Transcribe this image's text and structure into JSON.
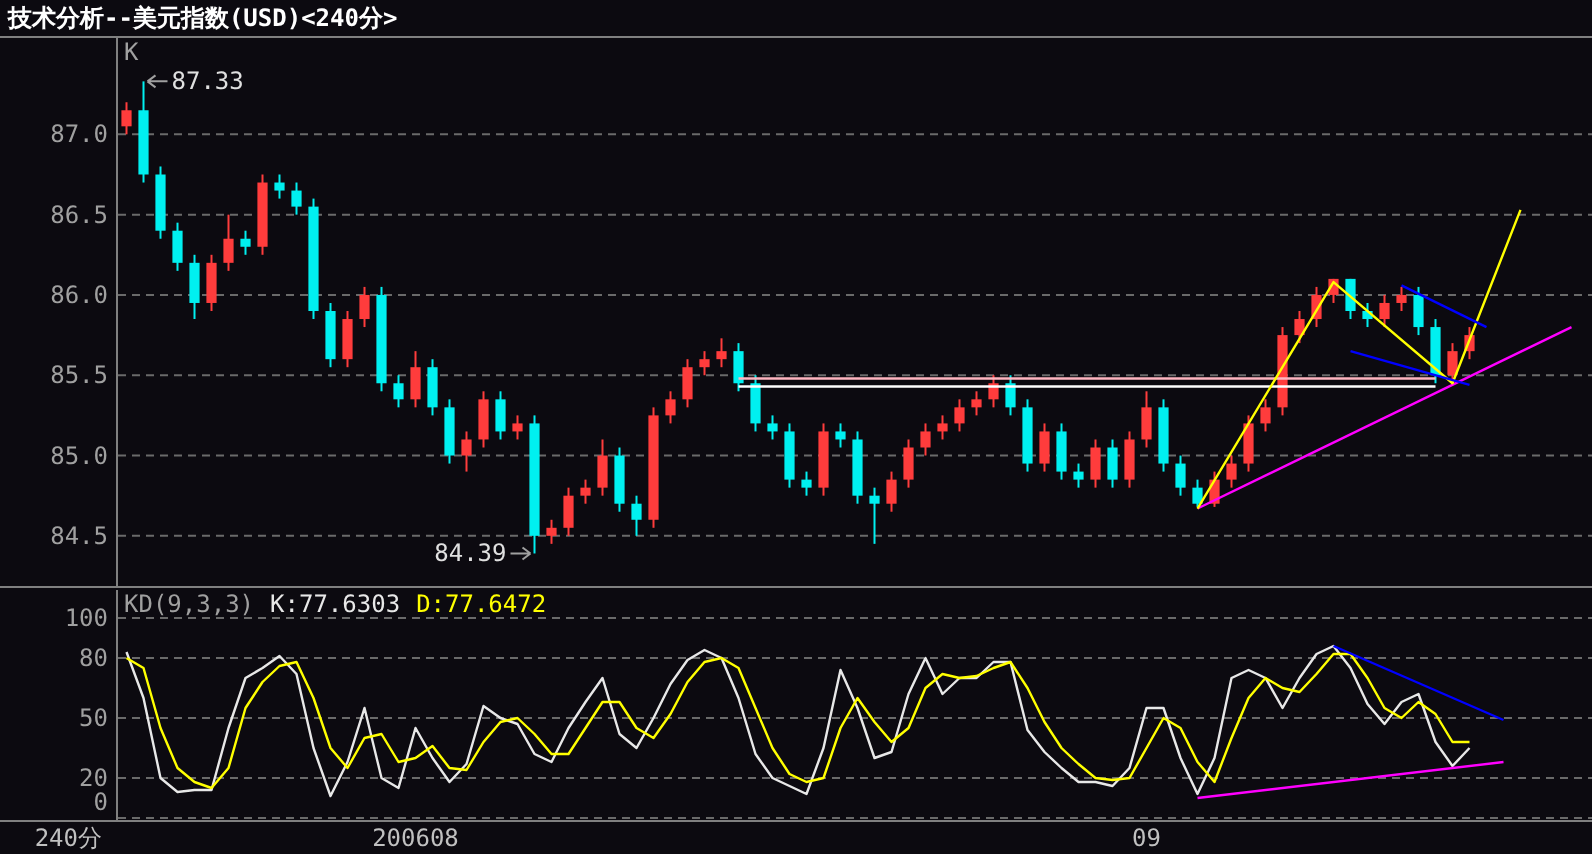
{
  "chart_data": [
    {
      "type": "candlestick",
      "title": "技术分析--美元指数(USD)<240分>",
      "categories": [
        null,
        null,
        null,
        null,
        null,
        null,
        null,
        null,
        null,
        null,
        null,
        null,
        null,
        null,
        null,
        null,
        null,
        null,
        null,
        null,
        null,
        null,
        null,
        null,
        null,
        null,
        null,
        null,
        null,
        null,
        null,
        null,
        null,
        null,
        null,
        null,
        null,
        null,
        null,
        null,
        null,
        null,
        null,
        null,
        null,
        null,
        null,
        null,
        null,
        null,
        null,
        null,
        null,
        null,
        null,
        null,
        null,
        null,
        null,
        null,
        null,
        null,
        null,
        null,
        null,
        null,
        null,
        null,
        null,
        null,
        null,
        null,
        null,
        null,
        null,
        null,
        null,
        null,
        null,
        null,
        null,
        null,
        null,
        null,
        null,
        null
      ],
      "ohlc": [
        [
          87.05,
          87.2,
          87.0,
          87.15
        ],
        [
          87.15,
          87.33,
          86.7,
          86.75
        ],
        [
          86.75,
          86.8,
          86.35,
          86.4
        ],
        [
          86.4,
          86.45,
          86.15,
          86.2
        ],
        [
          86.2,
          86.25,
          85.85,
          85.95
        ],
        [
          85.95,
          86.25,
          85.9,
          86.2
        ],
        [
          86.2,
          86.5,
          86.15,
          86.35
        ],
        [
          86.35,
          86.4,
          86.25,
          86.3
        ],
        [
          86.3,
          86.75,
          86.25,
          86.7
        ],
        [
          86.7,
          86.75,
          86.6,
          86.65
        ],
        [
          86.65,
          86.7,
          86.5,
          86.55
        ],
        [
          86.55,
          86.6,
          85.85,
          85.9
        ],
        [
          85.9,
          85.95,
          85.55,
          85.6
        ],
        [
          85.6,
          85.9,
          85.55,
          85.85
        ],
        [
          85.85,
          86.05,
          85.8,
          86.0
        ],
        [
          86.0,
          86.05,
          85.4,
          85.45
        ],
        [
          85.45,
          85.5,
          85.3,
          85.35
        ],
        [
          85.35,
          85.65,
          85.3,
          85.55
        ],
        [
          85.55,
          85.6,
          85.25,
          85.3
        ],
        [
          85.3,
          85.35,
          84.95,
          85.0
        ],
        [
          85.0,
          85.15,
          84.9,
          85.1
        ],
        [
          85.1,
          85.4,
          85.05,
          85.35
        ],
        [
          85.35,
          85.4,
          85.1,
          85.15
        ],
        [
          85.15,
          85.25,
          85.1,
          85.2
        ],
        [
          85.2,
          85.25,
          84.39,
          84.5
        ],
        [
          84.5,
          84.6,
          84.45,
          84.55
        ],
        [
          84.55,
          84.8,
          84.5,
          84.75
        ],
        [
          84.75,
          84.85,
          84.7,
          84.8
        ],
        [
          84.8,
          85.1,
          84.75,
          85.0
        ],
        [
          85.0,
          85.05,
          84.65,
          84.7
        ],
        [
          84.7,
          84.75,
          84.5,
          84.6
        ],
        [
          84.6,
          85.3,
          84.55,
          85.25
        ],
        [
          85.25,
          85.4,
          85.2,
          85.35
        ],
        [
          85.35,
          85.6,
          85.3,
          85.55
        ],
        [
          85.55,
          85.65,
          85.5,
          85.6
        ],
        [
          85.6,
          85.73,
          85.55,
          85.65
        ],
        [
          85.65,
          85.7,
          85.4,
          85.45
        ],
        [
          85.45,
          85.5,
          85.15,
          85.2
        ],
        [
          85.2,
          85.25,
          85.1,
          85.15
        ],
        [
          85.15,
          85.2,
          84.8,
          84.85
        ],
        [
          84.85,
          84.9,
          84.75,
          84.8
        ],
        [
          84.8,
          85.2,
          84.75,
          85.15
        ],
        [
          85.15,
          85.2,
          85.05,
          85.1
        ],
        [
          85.1,
          85.15,
          84.7,
          84.75
        ],
        [
          84.75,
          84.8,
          84.45,
          84.7
        ],
        [
          84.7,
          84.9,
          84.65,
          84.85
        ],
        [
          84.85,
          85.1,
          84.8,
          85.05
        ],
        [
          85.05,
          85.2,
          85.0,
          85.15
        ],
        [
          85.15,
          85.25,
          85.1,
          85.2
        ],
        [
          85.2,
          85.35,
          85.15,
          85.3
        ],
        [
          85.3,
          85.4,
          85.25,
          85.35
        ],
        [
          85.35,
          85.5,
          85.3,
          85.45
        ],
        [
          85.45,
          85.5,
          85.25,
          85.3
        ],
        [
          85.3,
          85.35,
          84.9,
          84.95
        ],
        [
          84.95,
          85.2,
          84.9,
          85.15
        ],
        [
          85.15,
          85.2,
          84.85,
          84.9
        ],
        [
          84.9,
          84.95,
          84.8,
          84.85
        ],
        [
          84.85,
          85.1,
          84.8,
          85.05
        ],
        [
          85.05,
          85.1,
          84.8,
          84.85
        ],
        [
          84.85,
          85.15,
          84.8,
          85.1
        ],
        [
          85.1,
          85.4,
          85.05,
          85.3
        ],
        [
          85.3,
          85.35,
          84.9,
          84.95
        ],
        [
          84.95,
          85.0,
          84.75,
          84.8
        ],
        [
          84.8,
          84.85,
          84.68,
          84.7
        ],
        [
          84.7,
          84.9,
          84.68,
          84.85
        ],
        [
          84.85,
          85.0,
          84.8,
          84.95
        ],
        [
          84.95,
          85.25,
          84.9,
          85.2
        ],
        [
          85.2,
          85.35,
          85.15,
          85.3
        ],
        [
          85.3,
          85.8,
          85.25,
          85.75
        ],
        [
          85.75,
          85.9,
          85.7,
          85.85
        ],
        [
          85.85,
          86.05,
          85.8,
          86.0
        ],
        [
          86.0,
          86.1,
          85.95,
          86.1
        ],
        [
          86.1,
          86.1,
          85.85,
          85.9
        ],
        [
          85.9,
          85.95,
          85.8,
          85.85
        ],
        [
          85.85,
          86.0,
          85.8,
          85.95
        ],
        [
          85.95,
          86.05,
          85.9,
          86.0
        ],
        [
          86.0,
          86.05,
          85.75,
          85.8
        ],
        [
          85.8,
          85.85,
          85.45,
          85.5
        ],
        [
          85.5,
          85.7,
          85.45,
          85.65
        ],
        [
          85.65,
          85.8,
          85.6,
          85.75
        ],
        null,
        null,
        null,
        null,
        null,
        null
      ],
      "ylim": [
        84.2,
        87.6
      ],
      "yticks": [
        84.5,
        {
          "value": 85,
          "label": "85.0"
        },
        85.5,
        {
          "value": 86,
          "label": "86.0"
        },
        86.5,
        {
          "value": 87,
          "label": "87.0"
        }
      ],
      "grid": "y",
      "tick_labels": "y",
      "annotations": [
        "K",
        "87.33",
        "84.39"
      ],
      "series": [
        {
          "type": "line",
          "color": "#ffb6c1",
          "values": [
            null,
            null,
            null,
            null,
            null,
            null,
            null,
            null,
            null,
            null,
            null,
            null,
            null,
            null,
            null,
            null,
            null,
            null,
            null,
            null,
            null,
            null,
            null,
            null,
            null,
            null,
            null,
            null,
            null,
            null,
            null,
            null,
            null,
            null,
            null,
            null,
            85.48,
            null,
            null,
            null,
            null,
            null,
            null,
            null,
            null,
            null,
            null,
            null,
            null,
            null,
            null,
            null,
            null,
            null,
            null,
            null,
            null,
            null,
            null,
            null,
            null,
            null,
            null,
            null,
            null,
            null,
            null,
            null,
            null,
            null,
            null,
            null,
            null,
            null,
            null,
            null,
            null,
            85.48,
            null,
            null,
            null,
            null,
            null,
            null,
            null,
            null
          ]
        },
        {
          "type": "line",
          "color": "#ffffff",
          "values": [
            null,
            null,
            null,
            null,
            null,
            null,
            null,
            null,
            null,
            null,
            null,
            null,
            null,
            null,
            null,
            null,
            null,
            null,
            null,
            null,
            null,
            null,
            null,
            null,
            null,
            null,
            null,
            null,
            null,
            null,
            null,
            null,
            null,
            null,
            null,
            null,
            85.43,
            null,
            null,
            null,
            null,
            null,
            null,
            null,
            null,
            null,
            null,
            null,
            null,
            null,
            null,
            null,
            null,
            null,
            null,
            null,
            null,
            null,
            null,
            null,
            null,
            null,
            null,
            null,
            null,
            null,
            null,
            null,
            null,
            null,
            null,
            null,
            null,
            null,
            null,
            null,
            null,
            85.43,
            null,
            null,
            null,
            null,
            null,
            null,
            null,
            null
          ]
        },
        {
          "type": "line",
          "color": "#ff00ff",
          "values": [
            null,
            null,
            null,
            null,
            null,
            null,
            null,
            null,
            null,
            null,
            null,
            null,
            null,
            null,
            null,
            null,
            null,
            null,
            null,
            null,
            null,
            null,
            null,
            null,
            null,
            null,
            null,
            null,
            null,
            null,
            null,
            null,
            null,
            null,
            null,
            null,
            null,
            null,
            null,
            null,
            null,
            null,
            null,
            null,
            null,
            null,
            null,
            null,
            null,
            null,
            null,
            null,
            null,
            null,
            null,
            null,
            null,
            null,
            null,
            null,
            null,
            null,
            null,
            84.67,
            null,
            null,
            null,
            null,
            null,
            null,
            null,
            null,
            null,
            null,
            null,
            null,
            null,
            null,
            null,
            null,
            null,
            null,
            null,
            null,
            null,
            85.8
          ]
        },
        {
          "type": "line",
          "color": "#ffff00",
          "values": [
            null,
            null,
            null,
            null,
            null,
            null,
            null,
            null,
            null,
            null,
            null,
            null,
            null,
            null,
            null,
            null,
            null,
            null,
            null,
            null,
            null,
            null,
            null,
            null,
            null,
            null,
            null,
            null,
            null,
            null,
            null,
            null,
            null,
            null,
            null,
            null,
            null,
            null,
            null,
            null,
            null,
            null,
            null,
            null,
            null,
            null,
            null,
            null,
            null,
            null,
            null,
            null,
            null,
            null,
            null,
            null,
            null,
            null,
            null,
            null,
            null,
            null,
            null,
            84.67,
            null,
            null,
            null,
            null,
            null,
            null,
            null,
            86.08,
            null,
            null,
            null,
            null,
            null,
            null,
            85.45,
            null,
            null,
            null,
            86.53,
            null,
            null,
            null
          ]
        },
        {
          "type": "line",
          "color": "#0000ff",
          "values": [
            null,
            null,
            null,
            null,
            null,
            null,
            null,
            null,
            null,
            null,
            null,
            null,
            null,
            null,
            null,
            null,
            null,
            null,
            null,
            null,
            null,
            null,
            null,
            null,
            null,
            null,
            null,
            null,
            null,
            null,
            null,
            null,
            null,
            null,
            null,
            null,
            null,
            null,
            null,
            null,
            null,
            null,
            null,
            null,
            null,
            null,
            null,
            null,
            null,
            null,
            null,
            null,
            null,
            null,
            null,
            null,
            null,
            null,
            null,
            null,
            null,
            null,
            null,
            null,
            null,
            null,
            null,
            null,
            null,
            null,
            null,
            null,
            null,
            null,
            null,
            86.06,
            null,
            null,
            null,
            null,
            85.8,
            null,
            null,
            null,
            null,
            null
          ]
        },
        {
          "type": "line",
          "color": "#0000ff",
          "values": [
            null,
            null,
            null,
            null,
            null,
            null,
            null,
            null,
            null,
            null,
            null,
            null,
            null,
            null,
            null,
            null,
            null,
            null,
            null,
            null,
            null,
            null,
            null,
            null,
            null,
            null,
            null,
            null,
            null,
            null,
            null,
            null,
            null,
            null,
            null,
            null,
            null,
            null,
            null,
            null,
            null,
            null,
            null,
            null,
            null,
            null,
            null,
            null,
            null,
            null,
            null,
            null,
            null,
            null,
            null,
            null,
            null,
            null,
            null,
            null,
            null,
            null,
            null,
            null,
            null,
            null,
            null,
            null,
            null,
            null,
            null,
            null,
            85.65,
            null,
            null,
            null,
            null,
            null,
            null,
            85.44,
            null,
            null,
            null,
            null,
            null,
            null
          ]
        }
      ]
    },
    {
      "type": "line",
      "categories": [
        null,
        null,
        null,
        null,
        null,
        null,
        null,
        null,
        null,
        null,
        null,
        null,
        null,
        null,
        null,
        null,
        null,
        "200608",
        null,
        null,
        null,
        null,
        null,
        null,
        null,
        null,
        null,
        null,
        null,
        null,
        null,
        null,
        null,
        null,
        null,
        null,
        null,
        null,
        null,
        null,
        null,
        null,
        null,
        null,
        null,
        null,
        null,
        null,
        null,
        null,
        null,
        null,
        null,
        null,
        null,
        null,
        null,
        null,
        null,
        null,
        "09",
        null,
        null,
        null,
        null,
        null,
        null,
        null,
        null,
        null,
        null,
        null,
        null,
        null,
        null,
        null,
        null,
        null,
        null,
        null,
        null,
        null,
        null,
        null,
        null,
        null
      ],
      "ylim": [
        0,
        114
      ],
      "yticks": [
        0,
        20,
        50,
        80,
        100
      ],
      "grid": "y",
      "legend": "top left",
      "annotations": [
        "KD(9,3,3)",
        "240分"
      ],
      "series": [
        {
          "name": "K:77.6303",
          "color": "#e8e8e8",
          "values": [
            83,
            60,
            20,
            13,
            14,
            14,
            45,
            70,
            75,
            81,
            72,
            35,
            11,
            28,
            55,
            20,
            15,
            45,
            30,
            18,
            27,
            56,
            50,
            47,
            32,
            28,
            45,
            58,
            70,
            42,
            35,
            50,
            67,
            79,
            84,
            80,
            60,
            32,
            20,
            16,
            12,
            35,
            74,
            55,
            30,
            33,
            62,
            80,
            62,
            70,
            70,
            78,
            78,
            44,
            33,
            25,
            18,
            18,
            16,
            25,
            55,
            55,
            30,
            12,
            30,
            70,
            74,
            70,
            55,
            70,
            82,
            86,
            75,
            57,
            47,
            58,
            62,
            38,
            26,
            35,
            null,
            null,
            null,
            null,
            null,
            null
          ]
        },
        {
          "name": "D:77.6472",
          "color": "#ffff00",
          "values": [
            80,
            75,
            45,
            25,
            18,
            15,
            25,
            55,
            68,
            76,
            78,
            60,
            35,
            25,
            40,
            42,
            28,
            30,
            36,
            25,
            24,
            38,
            48,
            50,
            42,
            32,
            32,
            45,
            58,
            58,
            45,
            40,
            52,
            68,
            78,
            80,
            75,
            55,
            35,
            22,
            18,
            20,
            45,
            60,
            48,
            38,
            45,
            65,
            72,
            70,
            71,
            75,
            78,
            65,
            48,
            35,
            27,
            20,
            19,
            20,
            35,
            50,
            45,
            28,
            18,
            40,
            60,
            70,
            65,
            63,
            72,
            82,
            82,
            70,
            55,
            50,
            58,
            52,
            38,
            38,
            null,
            null,
            null,
            null,
            null,
            null
          ]
        },
        {
          "type": "line",
          "color": "#0000ff",
          "values": [
            null,
            null,
            null,
            null,
            null,
            null,
            null,
            null,
            null,
            null,
            null,
            null,
            null,
            null,
            null,
            null,
            null,
            null,
            null,
            null,
            null,
            null,
            null,
            null,
            null,
            null,
            null,
            null,
            null,
            null,
            null,
            null,
            null,
            null,
            null,
            null,
            null,
            null,
            null,
            null,
            null,
            null,
            null,
            null,
            null,
            null,
            null,
            null,
            null,
            null,
            null,
            null,
            null,
            null,
            null,
            null,
            null,
            null,
            null,
            null,
            null,
            null,
            null,
            null,
            null,
            null,
            null,
            null,
            null,
            null,
            null,
            86,
            null,
            null,
            null,
            null,
            null,
            null,
            null,
            null,
            null,
            49,
            null,
            null,
            null,
            null
          ]
        },
        {
          "type": "line",
          "color": "#ff00ff",
          "values": [
            null,
            null,
            null,
            null,
            null,
            null,
            null,
            null,
            null,
            null,
            null,
            null,
            null,
            null,
            null,
            null,
            null,
            null,
            null,
            null,
            null,
            null,
            null,
            null,
            null,
            null,
            null,
            null,
            null,
            null,
            null,
            null,
            null,
            null,
            null,
            null,
            null,
            null,
            null,
            null,
            null,
            null,
            null,
            null,
            null,
            null,
            null,
            null,
            null,
            null,
            null,
            null,
            null,
            null,
            null,
            null,
            null,
            null,
            null,
            null,
            null,
            null,
            null,
            10,
            null,
            null,
            null,
            null,
            null,
            null,
            null,
            null,
            null,
            null,
            null,
            null,
            null,
            null,
            null,
            null,
            null,
            28,
            null,
            null,
            null,
            null
          ]
        }
      ]
    }
  ]
}
